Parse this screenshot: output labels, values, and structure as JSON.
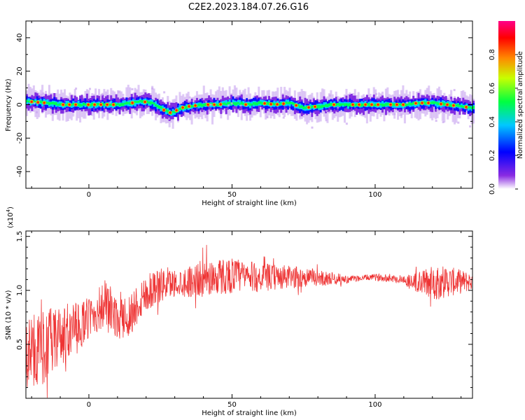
{
  "title": "C2E2.2023.184.07.26.G16",
  "colors": {
    "snr_line": "#ee3333",
    "axis": "#000000"
  },
  "chart_data": [
    {
      "type": "heatmap",
      "xlabel": "Height of straight line (km)",
      "ylabel": "Frequency (Hz)",
      "xlim": [
        -22,
        134
      ],
      "ylim": [
        -50,
        50
      ],
      "x_ticks": [
        0,
        50,
        100
      ],
      "y_ticks": [
        -40,
        -20,
        0,
        20,
        40
      ],
      "colorbar": {
        "label": "Normalized spectral amplitude",
        "range": [
          0,
          1
        ],
        "ticks": [
          0.0,
          0.2,
          0.4,
          0.6,
          0.8
        ],
        "colormap": "rainbow"
      },
      "ridge": {
        "x": [
          -22,
          -15,
          -10,
          -5,
          0,
          5,
          10,
          15,
          18,
          22,
          25,
          28,
          30,
          32,
          35,
          40,
          45,
          50,
          55,
          60,
          65,
          70,
          75,
          80,
          85,
          90,
          95,
          100,
          105,
          110,
          115,
          120,
          125,
          130,
          134
        ],
        "frequency": [
          2,
          1,
          0,
          0,
          0,
          0,
          0,
          1,
          2,
          1,
          -2,
          -5,
          -4,
          -2,
          -1,
          0,
          0,
          1,
          0,
          1,
          0,
          1,
          -2,
          -1,
          0,
          0,
          0,
          0,
          0,
          0,
          1,
          1,
          0,
          -1,
          -2
        ]
      }
    },
    {
      "type": "line",
      "xlabel": "Height of straight line (km)",
      "ylabel": "SNR (10 * v/v)",
      "y_multiplier": "(x10",
      "y_multiplier_exp": "4",
      "y_multiplier_close": ")",
      "xlim": [
        -22,
        134
      ],
      "ylim": [
        0,
        1.55
      ],
      "x_ticks": [
        0,
        50,
        100
      ],
      "y_ticks": [
        0.5,
        1.0,
        1.5
      ],
      "series": [
        {
          "x": [
            -22,
            -18,
            -14,
            -10,
            -6,
            -2,
            2,
            6,
            10,
            14,
            18,
            22,
            26,
            30,
            34,
            38,
            42,
            46,
            50,
            54,
            58,
            62,
            66,
            70,
            74,
            78,
            82,
            86,
            90,
            94,
            98,
            102,
            106,
            110,
            114,
            118,
            122,
            126,
            130,
            134
          ],
          "y": [
            0.42,
            0.45,
            0.5,
            0.56,
            0.62,
            0.7,
            0.78,
            0.88,
            0.72,
            0.76,
            0.92,
            1.02,
            1.05,
            1.07,
            1.08,
            1.1,
            1.12,
            1.13,
            1.14,
            1.13,
            1.12,
            1.12,
            1.12,
            1.12,
            1.12,
            1.12,
            1.11,
            1.11,
            1.1,
            1.11,
            1.12,
            1.12,
            1.11,
            1.1,
            1.07,
            1.07,
            1.08,
            1.08,
            1.08,
            1.08
          ],
          "spread": [
            0.5,
            0.5,
            0.48,
            0.4,
            0.36,
            0.3,
            0.28,
            0.35,
            0.25,
            0.3,
            0.28,
            0.26,
            0.22,
            0.18,
            0.2,
            0.24,
            0.25,
            0.25,
            0.24,
            0.22,
            0.2,
            0.18,
            0.17,
            0.16,
            0.14,
            0.12,
            0.1,
            0.08,
            0.05,
            0.04,
            0.04,
            0.05,
            0.05,
            0.06,
            0.14,
            0.2,
            0.24,
            0.2,
            0.16,
            0.12
          ]
        }
      ]
    }
  ]
}
